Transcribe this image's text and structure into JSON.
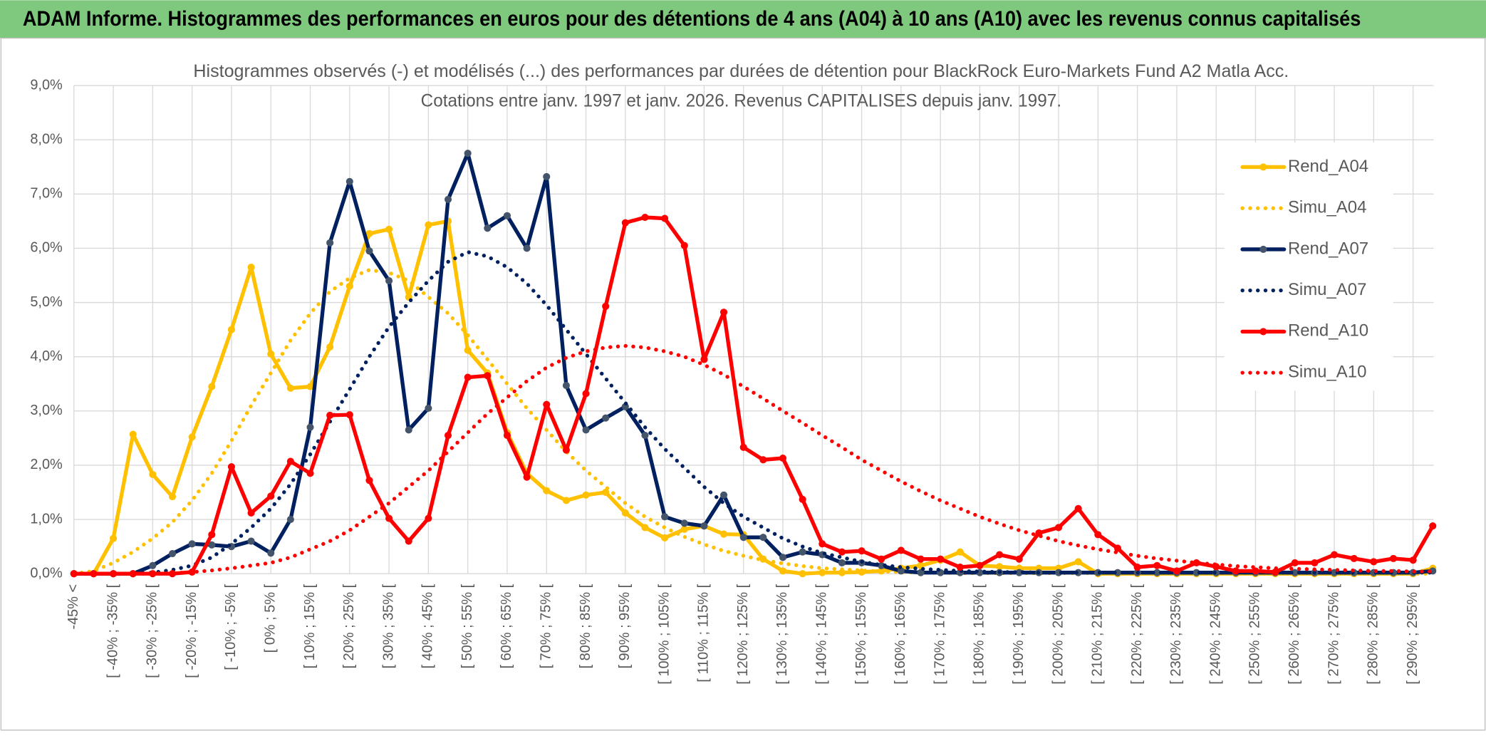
{
  "chart_data": {
    "type": "line",
    "header": "ADAM Informe. Histogrammes des performances en euros pour des détentions de 4 ans (A04) à 10 ans (A10) avec les revenus connus capitalisés",
    "title": "Histogrammes observés (-) et modélisés (...) des performances par durées de détention pour BlackRock Euro-Markets Fund A2 Matla Acc.",
    "subtitle": "Cotations entre janv. 1997 et janv. 2026. Revenus CAPITALISES depuis janv. 1997.",
    "categories": [
      "-45% <",
      null,
      "[ -40% ; -35% [",
      null,
      "[ -30% ; -25% [",
      null,
      "[ -20% ; -15% [",
      null,
      "[ -10% ; -5% [",
      null,
      "[ 0% ; 5% [",
      null,
      "[ 10% ; 15% [",
      null,
      "[ 20% ; 25% [",
      null,
      "[ 30% ; 35% [",
      null,
      "[ 40% ; 45% [",
      null,
      "[ 50% ; 55% [",
      null,
      "[ 60% ; 65% [",
      null,
      "[ 70% ; 75% [",
      null,
      "[ 80% ; 85% [",
      null,
      "[ 90% ; 95% [",
      null,
      "[ 100% ; 105% [",
      null,
      "[ 110% ; 115% [",
      null,
      "[ 120% ; 125% [",
      null,
      "[ 130% ; 135% [",
      null,
      "[ 140% ; 145% [",
      null,
      "[ 150% ; 155% [",
      null,
      "[ 160% ; 165% [",
      null,
      "[ 170% ; 175% [",
      null,
      "[ 180% ; 185% [",
      null,
      "[ 190% ; 195% [",
      null,
      "[ 200% ; 205% [",
      null,
      "[ 210% ; 215% [",
      null,
      "[ 220% ; 225% [",
      null,
      "[ 230% ; 235% [",
      null,
      "[ 240% ; 245% [",
      null,
      "[ 250% ; 255% [",
      null,
      "[ 260% ; 265% [",
      null,
      "[ 270% ; 275% [",
      null,
      "[ 280% ; 285% [",
      null,
      "[ 290% ; 295% [",
      null
    ],
    "ylim": [
      0,
      9
    ],
    "yticks": [
      {
        "value": 0,
        "label": "0,0%"
      },
      {
        "value": 1,
        "label": "1,0%"
      },
      {
        "value": 2,
        "label": "2,0%"
      },
      {
        "value": 3,
        "label": "3,0%"
      },
      {
        "value": 4,
        "label": "4,0%"
      },
      {
        "value": 5,
        "label": "5,0%"
      },
      {
        "value": 6,
        "label": "6,0%"
      },
      {
        "value": 7,
        "label": "7,0%"
      },
      {
        "value": 8,
        "label": "8,0%"
      },
      {
        "value": 9,
        "label": "9,0%"
      }
    ],
    "grid": true,
    "legend": "right",
    "series": [
      {
        "name": "Rend_A04",
        "color": "#ffc000",
        "style": "solid",
        "markers": true,
        "values": [
          0,
          0,
          0.65,
          2.57,
          1.83,
          1.42,
          2.52,
          3.45,
          4.5,
          5.65,
          4.05,
          3.42,
          3.45,
          4.18,
          5.3,
          6.27,
          6.35,
          5.1,
          6.43,
          6.5,
          4.12,
          3.7,
          2.6,
          1.85,
          1.53,
          1.35,
          1.45,
          1.5,
          1.12,
          0.85,
          0.66,
          0.82,
          0.88,
          0.73,
          0.72,
          0.27,
          0.05,
          0,
          0.02,
          0.02,
          0.03,
          0.05,
          0.1,
          0.15,
          0.25,
          0.4,
          0.15,
          0.13,
          0.1,
          0.1,
          0.1,
          0.22,
          0,
          0,
          0,
          0,
          0,
          0,
          0,
          0,
          0,
          0,
          0,
          0,
          0,
          0,
          0,
          0,
          0,
          0.1
        ]
      },
      {
        "name": "Simu_A04",
        "color": "#ffc000",
        "style": "dotted",
        "markers": false,
        "values": [
          0,
          0.05,
          0.2,
          0.4,
          0.65,
          0.95,
          1.35,
          1.85,
          2.45,
          3.1,
          3.7,
          4.3,
          4.8,
          5.2,
          5.45,
          5.6,
          5.55,
          5.4,
          5.1,
          4.8,
          4.4,
          3.95,
          3.5,
          3.05,
          2.65,
          2.25,
          1.9,
          1.6,
          1.3,
          1.05,
          0.85,
          0.68,
          0.54,
          0.42,
          0.33,
          0.25,
          0.19,
          0.14,
          0.1,
          0.08,
          0.06,
          0.04,
          0.03,
          0.02,
          0.02,
          0.01,
          0.01,
          0.01,
          0.01,
          0.01,
          0.01,
          0.01,
          0.01,
          0.01,
          0.01,
          0.01,
          0.01,
          0.01,
          0.01,
          0.01,
          0,
          0,
          0,
          0,
          0,
          0,
          0,
          0,
          0,
          0
        ]
      },
      {
        "name": "Rend_A07",
        "color": "#002060",
        "marker_color": "#44546a",
        "style": "solid",
        "markers": true,
        "values": [
          0,
          0,
          0,
          0,
          0.15,
          0.37,
          0.55,
          0.53,
          0.5,
          0.6,
          0.38,
          1.0,
          2.7,
          6.1,
          7.23,
          5.95,
          5.4,
          2.65,
          3.05,
          6.9,
          7.75,
          6.37,
          6.6,
          6.0,
          7.32,
          3.47,
          2.65,
          2.87,
          3.08,
          2.55,
          1.05,
          0.93,
          0.88,
          1.45,
          0.67,
          0.67,
          0.3,
          0.4,
          0.35,
          0.2,
          0.2,
          0.15,
          0.05,
          0.02,
          0.02,
          0.02,
          0.02,
          0.02,
          0.02,
          0.02,
          0.02,
          0.02,
          0.02,
          0.02,
          0.02,
          0.02,
          0.02,
          0.02,
          0.02,
          0.02,
          0.02,
          0.02,
          0.02,
          0.02,
          0.02,
          0.02,
          0.02,
          0.02,
          0.02,
          0.05
        ]
      },
      {
        "name": "Simu_A07",
        "color": "#002060",
        "style": "dotted",
        "markers": false,
        "values": [
          0,
          0,
          0,
          0,
          0.02,
          0.07,
          0.15,
          0.3,
          0.55,
          0.85,
          1.2,
          1.65,
          2.2,
          2.8,
          3.4,
          4.0,
          4.55,
          5.0,
          5.4,
          5.75,
          5.93,
          5.85,
          5.65,
          5.35,
          4.95,
          4.5,
          4.05,
          3.6,
          3.15,
          2.7,
          2.3,
          1.95,
          1.6,
          1.3,
          1.05,
          0.85,
          0.65,
          0.5,
          0.38,
          0.3,
          0.22,
          0.16,
          0.12,
          0.09,
          0.07,
          0.05,
          0.04,
          0.03,
          0.03,
          0.02,
          0.02,
          0.02,
          0.02,
          0.02,
          0.02,
          0.02,
          0.02,
          0.02,
          0.02,
          0.02,
          0.02,
          0.02,
          0.02,
          0.02,
          0.02,
          0.02,
          0.02,
          0.02,
          0.02,
          0.02
        ]
      },
      {
        "name": "Rend_A10",
        "color": "#ff0000",
        "style": "solid",
        "markers": true,
        "values": [
          0,
          0,
          0,
          0,
          0,
          0,
          0.03,
          0.72,
          1.97,
          1.12,
          1.43,
          2.07,
          1.85,
          2.92,
          2.93,
          1.72,
          1.02,
          0.6,
          1.02,
          2.55,
          3.62,
          3.65,
          2.55,
          1.78,
          3.12,
          2.28,
          3.32,
          4.93,
          6.47,
          6.57,
          6.55,
          6.05,
          3.95,
          4.82,
          2.33,
          2.1,
          2.13,
          1.37,
          0.55,
          0.4,
          0.42,
          0.27,
          0.43,
          0.27,
          0.27,
          0.12,
          0.15,
          0.35,
          0.27,
          0.75,
          0.85,
          1.2,
          0.72,
          0.47,
          0.12,
          0.15,
          0.05,
          0.2,
          0.13,
          0.05,
          0.05,
          0.03,
          0.2,
          0.2,
          0.35,
          0.28,
          0.22,
          0.28,
          0.25,
          0.88
        ]
      },
      {
        "name": "Simu_A10",
        "color": "#ff0000",
        "style": "dotted",
        "markers": false,
        "values": [
          0,
          0,
          0,
          0,
          0,
          0.01,
          0.03,
          0.06,
          0.1,
          0.15,
          0.2,
          0.3,
          0.45,
          0.6,
          0.8,
          1.05,
          1.3,
          1.6,
          1.9,
          2.25,
          2.6,
          2.95,
          3.25,
          3.55,
          3.8,
          3.98,
          4.1,
          4.17,
          4.2,
          4.17,
          4.1,
          4.0,
          3.85,
          3.67,
          3.45,
          3.23,
          3.0,
          2.78,
          2.55,
          2.33,
          2.1,
          1.9,
          1.7,
          1.52,
          1.35,
          1.2,
          1.05,
          0.92,
          0.8,
          0.7,
          0.6,
          0.52,
          0.45,
          0.39,
          0.33,
          0.28,
          0.24,
          0.2,
          0.17,
          0.14,
          0.12,
          0.1,
          0.09,
          0.08,
          0.07,
          0.06,
          0.05,
          0.05,
          0.04,
          0.04
        ]
      }
    ]
  }
}
